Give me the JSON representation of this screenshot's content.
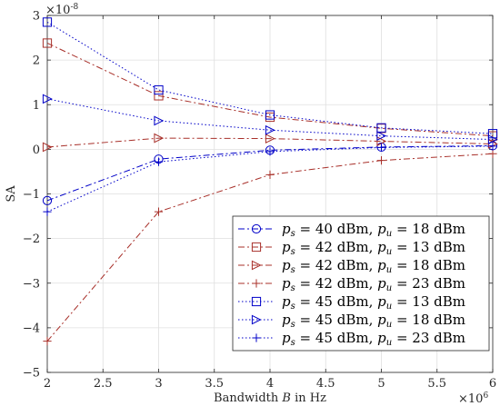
{
  "chart_data": {
    "type": "line",
    "xlabel_prefix": "Bandwidth ",
    "xlabel_var": "B",
    "xlabel_suffix": " in Hz",
    "ylabel": "SA",
    "y_exponent_label": "×10",
    "y_exponent_value": "-8",
    "x_exponent_label": "×10",
    "x_exponent_value": "6",
    "xlim": [
      2,
      6
    ],
    "ylim": [
      -5,
      3
    ],
    "xticks": [
      2,
      2.5,
      3,
      3.5,
      4,
      4.5,
      5,
      5.5,
      6
    ],
    "xtick_labels": [
      "2",
      "2.5",
      "3",
      "3.5",
      "4",
      "4.5",
      "5",
      "5.5",
      "6"
    ],
    "yticks": [
      -5,
      -4,
      -3,
      -2,
      -1,
      0,
      1,
      2,
      3
    ],
    "ytick_labels": [
      "−5",
      "−4",
      "−3",
      "−2",
      "−1",
      "0",
      "1",
      "2",
      "3"
    ],
    "grid": true,
    "legend_position": "bottom-right",
    "x": [
      2,
      3,
      4,
      5,
      6
    ],
    "series": [
      {
        "ps": "40",
        "pu": "18",
        "color": "#0000c8",
        "dash": "dashdot",
        "marker": "circle",
        "values": [
          -1.15,
          -0.22,
          -0.02,
          0.05,
          0.08
        ]
      },
      {
        "ps": "42",
        "pu": "13",
        "color": "#a8302a",
        "dash": "dashdot",
        "marker": "square",
        "values": [
          2.38,
          1.2,
          0.72,
          0.47,
          0.3
        ]
      },
      {
        "ps": "42",
        "pu": "18",
        "color": "#a8302a",
        "dash": "dashdot",
        "marker": "triangle-right",
        "values": [
          0.05,
          0.25,
          0.24,
          0.18,
          0.12
        ]
      },
      {
        "ps": "42",
        "pu": "23",
        "color": "#a8302a",
        "dash": "dashdot",
        "marker": "plus",
        "values": [
          -4.3,
          -1.4,
          -0.57,
          -0.25,
          -0.1
        ]
      },
      {
        "ps": "45",
        "pu": "13",
        "color": "#0000c8",
        "dash": "dotted",
        "marker": "square",
        "values": [
          2.85,
          1.33,
          0.77,
          0.48,
          0.35
        ]
      },
      {
        "ps": "45",
        "pu": "18",
        "color": "#0000c8",
        "dash": "dotted",
        "marker": "triangle-right",
        "values": [
          1.13,
          0.64,
          0.43,
          0.3,
          0.22
        ]
      },
      {
        "ps": "45",
        "pu": "23",
        "color": "#0000c8",
        "dash": "dotted",
        "marker": "plus",
        "values": [
          -1.4,
          -0.28,
          -0.05,
          0.04,
          0.07
        ]
      }
    ]
  }
}
